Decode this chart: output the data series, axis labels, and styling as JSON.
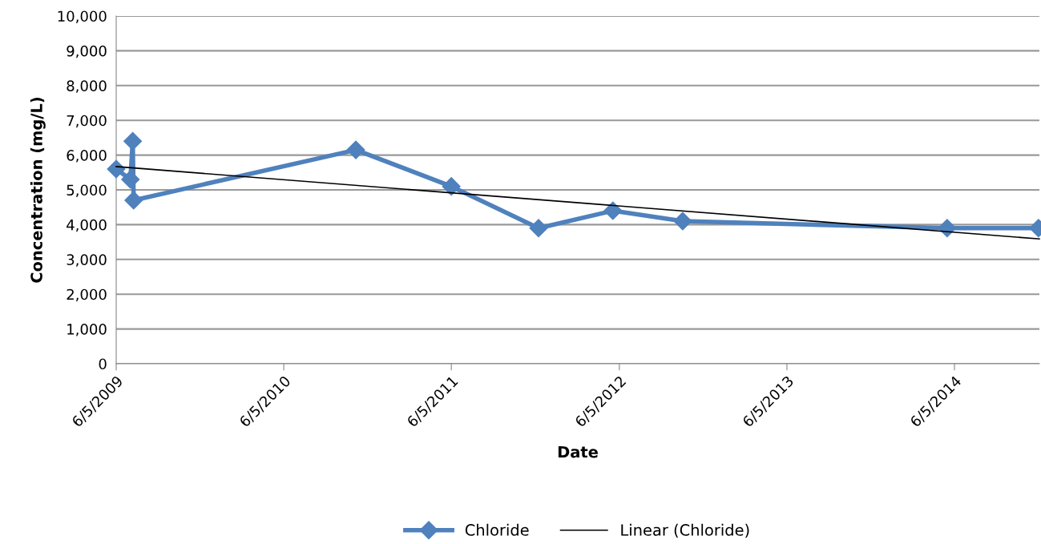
{
  "chart_data": {
    "type": "line",
    "xlabel": "Date",
    "ylabel": "Concentration (mg/L)",
    "x": [
      "2009-06-05",
      "2009-07-06",
      "2009-07-11",
      "2009-07-13",
      "2010-11-09",
      "2011-06-05",
      "2011-12-12",
      "2012-05-22",
      "2012-10-21",
      "2014-05-20",
      "2014-12-05"
    ],
    "series": [
      {
        "name": "Chloride",
        "color": "#4f81bd",
        "marker": "diamond",
        "values": [
          5600,
          5300,
          6400,
          4700,
          6150,
          5100,
          3900,
          4400,
          4100,
          3900,
          3900
        ]
      },
      {
        "name": "Linear (Chloride)",
        "color": "#000000",
        "marker": "none",
        "x": [
          "2009-06-05",
          "2014-12-07"
        ],
        "values": [
          5670,
          3590
        ]
      }
    ],
    "xlim": [
      "2009-06-05",
      "2014-12-07"
    ],
    "xticks": [
      {
        "value": "2009-06-05",
        "label": "6/5/2009"
      },
      {
        "value": "2010-06-05",
        "label": "6/5/2010"
      },
      {
        "value": "2011-06-05",
        "label": "6/5/2011"
      },
      {
        "value": "2012-06-05",
        "label": "6/5/2012"
      },
      {
        "value": "2013-06-05",
        "label": "6/5/2013"
      },
      {
        "value": "2014-06-05",
        "label": "6/5/2014"
      }
    ],
    "ylim": [
      0,
      10000
    ],
    "yticks": [
      {
        "value": 0,
        "label": "0"
      },
      {
        "value": 1000,
        "label": "1,000"
      },
      {
        "value": 2000,
        "label": "2,000"
      },
      {
        "value": 3000,
        "label": "3,000"
      },
      {
        "value": 4000,
        "label": "4,000"
      },
      {
        "value": 5000,
        "label": "5,000"
      },
      {
        "value": 6000,
        "label": "6,000"
      },
      {
        "value": 7000,
        "label": "7,000"
      },
      {
        "value": 8000,
        "label": "8,000"
      },
      {
        "value": 9000,
        "label": "9,000"
      },
      {
        "value": 10000,
        "label": "10,000"
      }
    ],
    "grid": "y",
    "legend": "bottom",
    "line_style": "solid"
  }
}
